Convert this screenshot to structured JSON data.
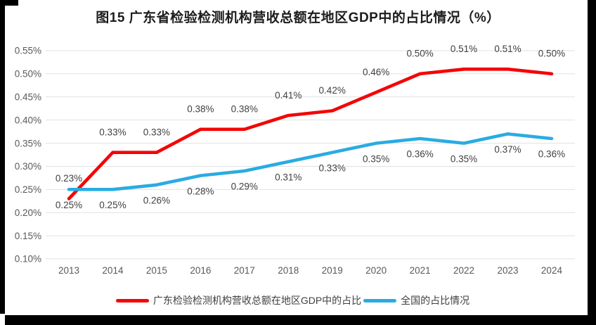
{
  "page": {
    "background": "#ffffff",
    "scan_edge_color": "#000000"
  },
  "chart_data": {
    "type": "line",
    "title": "图15 广东省检验检测机构营收总额在地区GDP中的占比情况（%）",
    "categories": [
      "2013",
      "2014",
      "2015",
      "2016",
      "2017",
      "2018",
      "2019",
      "2020",
      "2021",
      "2022",
      "2023",
      "2024"
    ],
    "series": [
      {
        "name": "广东检验检测机构营收总额在地区GDP中的占比",
        "color": "#f40505",
        "values": [
          0.23,
          0.33,
          0.33,
          0.38,
          0.38,
          0.41,
          0.42,
          0.46,
          0.5,
          0.51,
          0.51,
          0.5
        ],
        "point_labels": [
          "0.23%",
          "0.33%",
          "0.33%",
          "0.38%",
          "0.38%",
          "0.41%",
          "0.42%",
          "0.46%",
          "0.50%",
          "0.51%",
          "0.51%",
          "0.50%"
        ],
        "label_position": "above"
      },
      {
        "name": "全国的占比情况",
        "color": "#2aabe2",
        "values": [
          0.25,
          0.25,
          0.26,
          0.28,
          0.29,
          0.31,
          0.33,
          0.35,
          0.36,
          0.35,
          0.37,
          0.36
        ],
        "point_labels": [
          "0.25%",
          "0.25%",
          "0.26%",
          "0.28%",
          "0.29%",
          "0.31%",
          "0.33%",
          "0.35%",
          "0.36%",
          "0.35%",
          "0.37%",
          "0.36%"
        ],
        "label_position": "below"
      }
    ],
    "y_axis": {
      "ticks": [
        "0.55%",
        "0.50%",
        "0.45%",
        "0.40%",
        "0.35%",
        "0.30%",
        "0.25%",
        "0.20%",
        "0.15%",
        "0.10%"
      ],
      "max": 0.55,
      "min": 0.1,
      "step": 0.05
    },
    "xlabel": "",
    "ylabel": "",
    "grid": true,
    "legend_position": "bottom",
    "colors": {
      "gridline": "#e1e1e1",
      "tick_label": "#595959",
      "data_label": "#404040",
      "title": "#1c1c1c"
    }
  }
}
